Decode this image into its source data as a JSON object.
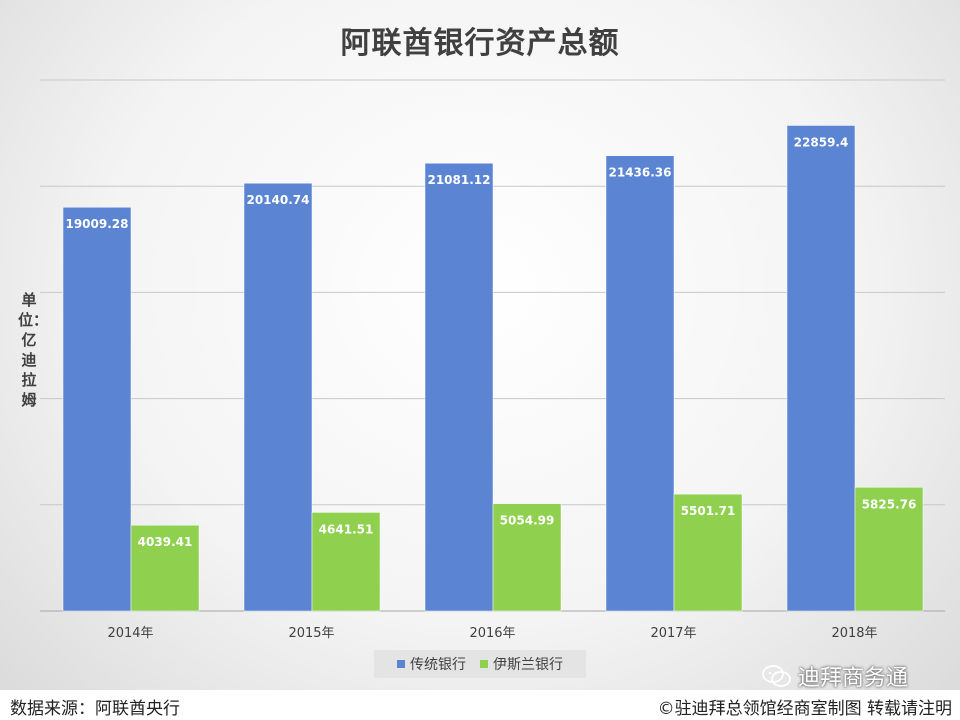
{
  "chart_data": {
    "type": "bar",
    "title": "阿联酋银行资产总额",
    "ylabel": "单位：亿迪拉姆",
    "xlabel": "",
    "categories": [
      "2014年",
      "2015年",
      "2016年",
      "2017年",
      "2018年"
    ],
    "series": [
      {
        "name": "传统银行",
        "color": "#5b84d2",
        "values": [
          19009.28,
          20140.74,
          21081.12,
          21436.36,
          22859.4
        ]
      },
      {
        "name": "伊斯兰银行",
        "color": "#8fd14f",
        "values": [
          4039.41,
          4641.51,
          5054.99,
          5501.71,
          5825.76
        ]
      }
    ],
    "ylim": [
      0,
      25000
    ],
    "grid": true,
    "legend_position": "bottom"
  },
  "footer": {
    "source": "数据来源：阿联酋央行",
    "credit": "©驻迪拜总领馆经商室制图 转载请注明"
  },
  "watermark": {
    "text": "迪拜商务通",
    "icon": "wechat-icon"
  }
}
